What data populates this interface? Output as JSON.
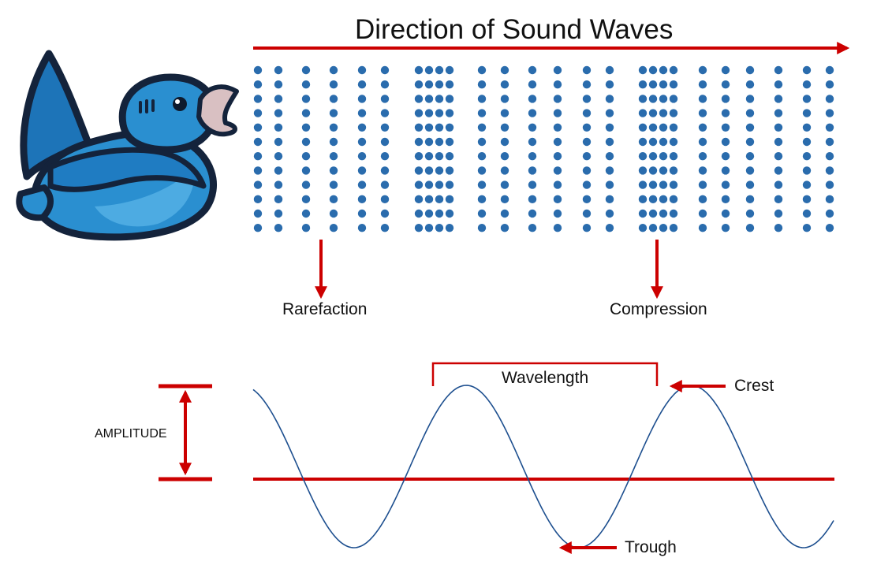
{
  "title": "Direction of Sound Waves",
  "labels": {
    "rarefaction": "Rarefaction",
    "compression": "Compression",
    "wavelength": "Wavelength",
    "crest": "Crest",
    "trough": "Trough",
    "amplitude": "AMPLITUDE"
  },
  "colors": {
    "arrow": "#cc0000",
    "particle": "#2a6cad",
    "wave": "#1d4f8f",
    "bird_body": "#2a8fd0",
    "bird_outline": "#14233b",
    "bird_beak": "#d9c0c2",
    "text": "#111111"
  },
  "icons": {
    "speaker": "cartoon-bird-icon"
  }
}
